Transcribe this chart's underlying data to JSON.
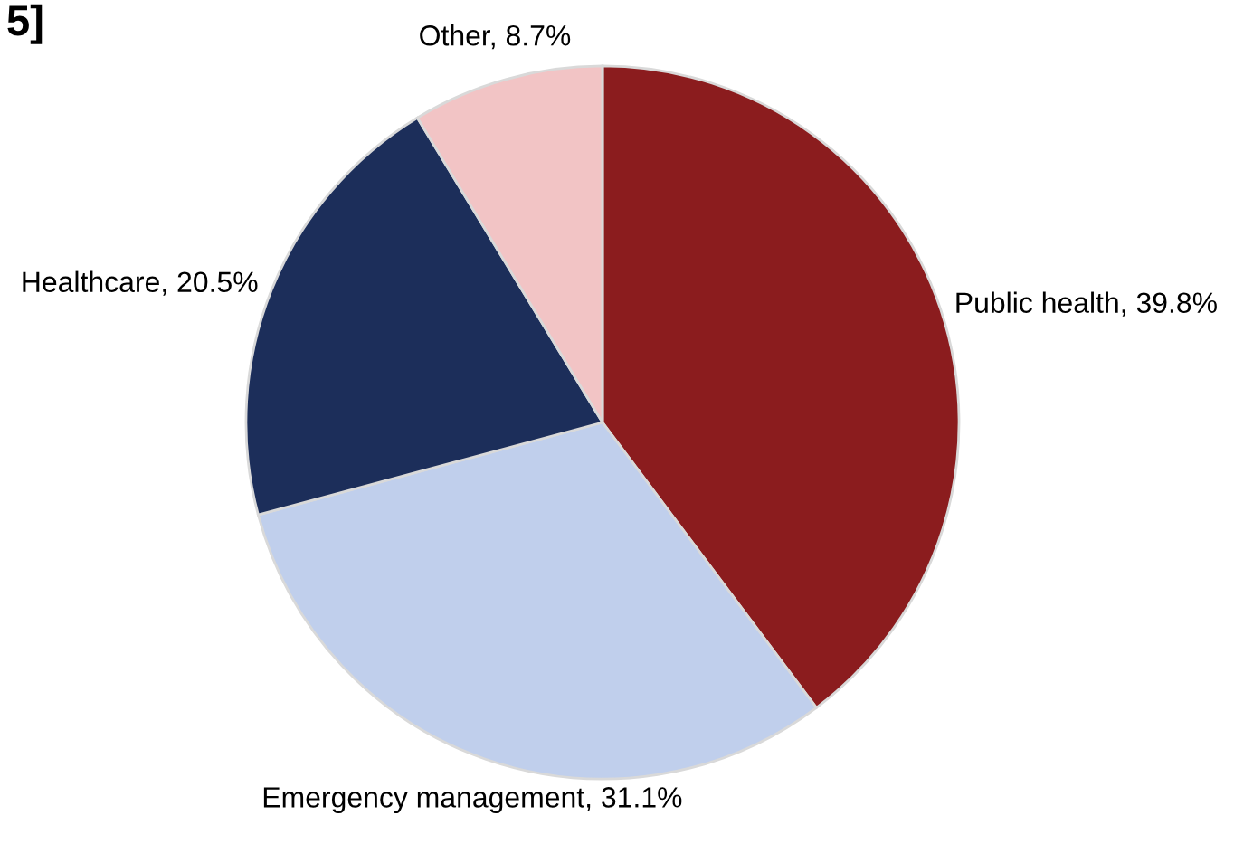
{
  "chart_data": {
    "type": "pie",
    "categories": [
      "Public health",
      "Emergency management",
      "Healthcare",
      "Other"
    ],
    "values": [
      39.8,
      31.1,
      20.5,
      8.7
    ],
    "value_labels": [
      "39.8%",
      "31.1%",
      "20.5%",
      "8.7%"
    ],
    "colors": [
      "#8b1c1e",
      "#c0cfec",
      "#1c2e5a",
      "#f2c4c5"
    ],
    "annotations": [
      "5]"
    ],
    "legend": false
  }
}
